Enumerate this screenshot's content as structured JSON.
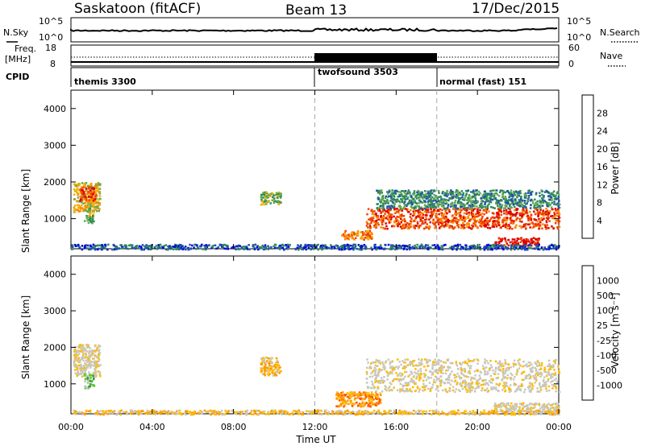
{
  "header": {
    "radar": "Saskatoon (fitACF)",
    "beam": "Beam 13",
    "date": "17/Dec/2015"
  },
  "sky_panel": {
    "left_label": "N.Sky",
    "right_label": "N.Search",
    "left_ticks": [
      "10^5",
      "10^0"
    ],
    "right_ticks": [
      "10^5",
      "10^0"
    ]
  },
  "freq_panel": {
    "left_label_line1": "Freq.",
    "left_label_line2": "[MHz]",
    "right_label": "Nave",
    "left_ticks": [
      "18",
      "8"
    ],
    "right_ticks": [
      "60",
      "0"
    ]
  },
  "cpid": {
    "label": "CPID",
    "segments": [
      {
        "name": "themis 3300",
        "start_hour": 0
      },
      {
        "name": "twofsound 3503",
        "start_hour": 12
      },
      {
        "name": "normal (fast) 151",
        "start_hour": 18
      }
    ]
  },
  "colors": {
    "power_scale": [
      "#0000dd",
      "#2255aa",
      "#2e8b57",
      "#66aa55",
      "#f0b400",
      "#ff8800",
      "#ee4400",
      "#dd0000"
    ],
    "velocity_scale": [
      "#dd0000",
      "#ff5500",
      "#ff9900",
      "#ffbb00",
      "#c8c8c0",
      "#c8c8c0",
      "#66cc22",
      "#339955",
      "#225599",
      "#0033aa"
    ],
    "ground_scatter": "#c8c8c0"
  },
  "chart_data": [
    {
      "type": "heatmap",
      "name": "power",
      "ylabel": "Slant Range [km]",
      "colorbar_label": "Power [dB]",
      "colorbar_ticks": [
        "28",
        "24",
        "20",
        "16",
        "12",
        "8",
        "4"
      ],
      "yticks": [
        "4000",
        "3000",
        "2000",
        "1000"
      ],
      "ylim": [
        180,
        4500
      ],
      "xlim": [
        0,
        24
      ],
      "blobs": [
        {
          "t0": 0.1,
          "t1": 1.4,
          "r0": 1200,
          "r1": 2000,
          "level": 4
        },
        {
          "t0": 0.4,
          "t1": 1.2,
          "r0": 1500,
          "r1": 1900,
          "level": 6
        },
        {
          "t0": 0.6,
          "t1": 1.1,
          "r0": 900,
          "r1": 1300,
          "level": 3
        },
        {
          "t0": 9.3,
          "t1": 10.3,
          "r0": 1400,
          "r1": 1750,
          "level": 3
        },
        {
          "t0": 13.3,
          "t1": 14.8,
          "r0": 450,
          "r1": 700,
          "level": 5
        },
        {
          "t0": 14.5,
          "t1": 24,
          "r0": 750,
          "r1": 1300,
          "level": 6
        },
        {
          "t0": 15.0,
          "t1": 24,
          "r0": 1300,
          "r1": 1800,
          "level": 2
        },
        {
          "t0": 20.8,
          "t1": 23.0,
          "r0": 280,
          "r1": 500,
          "level": 7
        },
        {
          "t0": 0,
          "t1": 24,
          "r0": 180,
          "r1": 320,
          "level": 1
        }
      ]
    },
    {
      "type": "heatmap",
      "name": "velocity",
      "xlabel": "Time UT",
      "ylabel": "Slant Range [km]",
      "colorbar_label": "Velocity [m s⁻¹]",
      "colorbar_ticks": [
        "1000",
        "500",
        "100",
        "25",
        "-25",
        "-100",
        "-500",
        "-1000"
      ],
      "yticks": [
        "4000",
        "3000",
        "2000",
        "1000"
      ],
      "xticks": [
        "00:00",
        "04:00",
        "08:00",
        "12:00",
        "16:00",
        "20:00",
        "00:00"
      ],
      "ylim": [
        180,
        4500
      ],
      "xlim": [
        0,
        24
      ],
      "blobs": [
        {
          "t0": 0.1,
          "t1": 1.4,
          "r0": 1200,
          "r1": 2100,
          "level": 4
        },
        {
          "t0": 0.6,
          "t1": 1.1,
          "r0": 900,
          "r1": 1300,
          "level": 6
        },
        {
          "t0": 9.3,
          "t1": 10.3,
          "r0": 1250,
          "r1": 1750,
          "level": 3
        },
        {
          "t0": 13.0,
          "t1": 15.2,
          "r0": 400,
          "r1": 800,
          "level": 2
        },
        {
          "t0": 14.5,
          "t1": 24,
          "r0": 800,
          "r1": 1700,
          "level": 4
        },
        {
          "t0": 20.8,
          "t1": 24,
          "r0": 250,
          "r1": 500,
          "level": 4
        },
        {
          "t0": 0,
          "t1": 24,
          "r0": 180,
          "r1": 300,
          "level": 3
        }
      ]
    }
  ]
}
